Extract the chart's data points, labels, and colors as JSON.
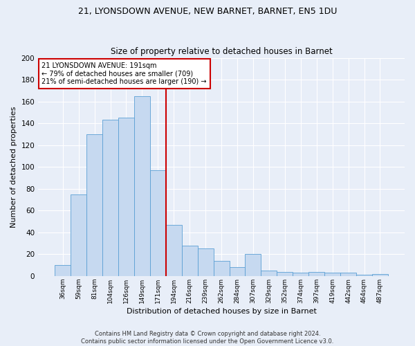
{
  "title1": "21, LYONSDOWN AVENUE, NEW BARNET, BARNET, EN5 1DU",
  "title2": "Size of property relative to detached houses in Barnet",
  "xlabel": "Distribution of detached houses by size in Barnet",
  "ylabel": "Number of detached properties",
  "categories": [
    "36sqm",
    "59sqm",
    "81sqm",
    "104sqm",
    "126sqm",
    "149sqm",
    "171sqm",
    "194sqm",
    "216sqm",
    "239sqm",
    "262sqm",
    "284sqm",
    "307sqm",
    "329sqm",
    "352sqm",
    "374sqm",
    "397sqm",
    "419sqm",
    "442sqm",
    "464sqm",
    "487sqm"
  ],
  "values": [
    10,
    75,
    130,
    143,
    145,
    165,
    97,
    47,
    28,
    25,
    14,
    8,
    20,
    5,
    4,
    3,
    4,
    3,
    3,
    1,
    2
  ],
  "bar_color": "#c6d9f0",
  "bar_edge_color": "#5a9fd4",
  "vline_color": "#cc0000",
  "vline_x": 6.5,
  "annotation_text": "21 LYONSDOWN AVENUE: 191sqm\n← 79% of detached houses are smaller (709)\n21% of semi-detached houses are larger (190) →",
  "annotation_box_facecolor": "#ffffff",
  "annotation_box_edgecolor": "#cc0000",
  "background_color": "#e8eef8",
  "grid_color": "#ffffff",
  "footer1": "Contains HM Land Registry data © Crown copyright and database right 2024.",
  "footer2": "Contains public sector information licensed under the Open Government Licence v3.0.",
  "ylim": [
    0,
    200
  ],
  "yticks": [
    0,
    20,
    40,
    60,
    80,
    100,
    120,
    140,
    160,
    180,
    200
  ],
  "title1_fontsize": 9,
  "title2_fontsize": 8.5,
  "xlabel_fontsize": 8,
  "ylabel_fontsize": 8,
  "annotation_fontsize": 7,
  "footer_fontsize": 6
}
